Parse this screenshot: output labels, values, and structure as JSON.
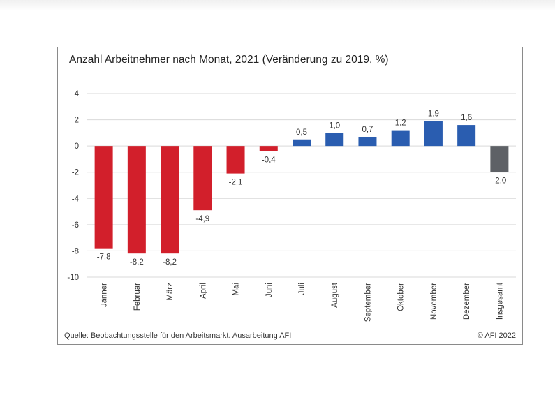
{
  "chart_data": {
    "type": "bar",
    "title": "Anzahl Arbeitnehmer nach Monat, 2021 (Veränderung zu 2019, %)",
    "xlabel": "",
    "ylabel": "",
    "ylim": [
      -10,
      4
    ],
    "yticks": [
      4,
      2,
      0,
      -2,
      -4,
      -6,
      -8,
      -10
    ],
    "grid": true,
    "categories": [
      "Jänner",
      "Februar",
      "März",
      "April",
      "Mai",
      "Juni",
      "Juli",
      "August",
      "September",
      "Oktober",
      "November",
      "Dezember",
      "Insgesamt"
    ],
    "values": [
      -7.8,
      -8.2,
      -8.2,
      -4.9,
      -2.1,
      -0.4,
      0.5,
      1.0,
      0.7,
      1.2,
      1.9,
      1.6,
      -2.0
    ],
    "value_labels": [
      "-7,8",
      "-8,2",
      "-8,2",
      "-4,9",
      "-2,1",
      "-0,4",
      "0,5",
      "1,0",
      "0,7",
      "1,2",
      "1,9",
      "1,6",
      "-2,0"
    ],
    "colors": {
      "negative": "#d21f2b",
      "positive": "#2a5db0",
      "total": "#5e6166",
      "grid": "#d9d9d9"
    }
  },
  "source": "Quelle: Beobachtungsstelle für den Arbeitsmarkt. Ausarbeitung AFI",
  "copyright": "© AFI 2022"
}
